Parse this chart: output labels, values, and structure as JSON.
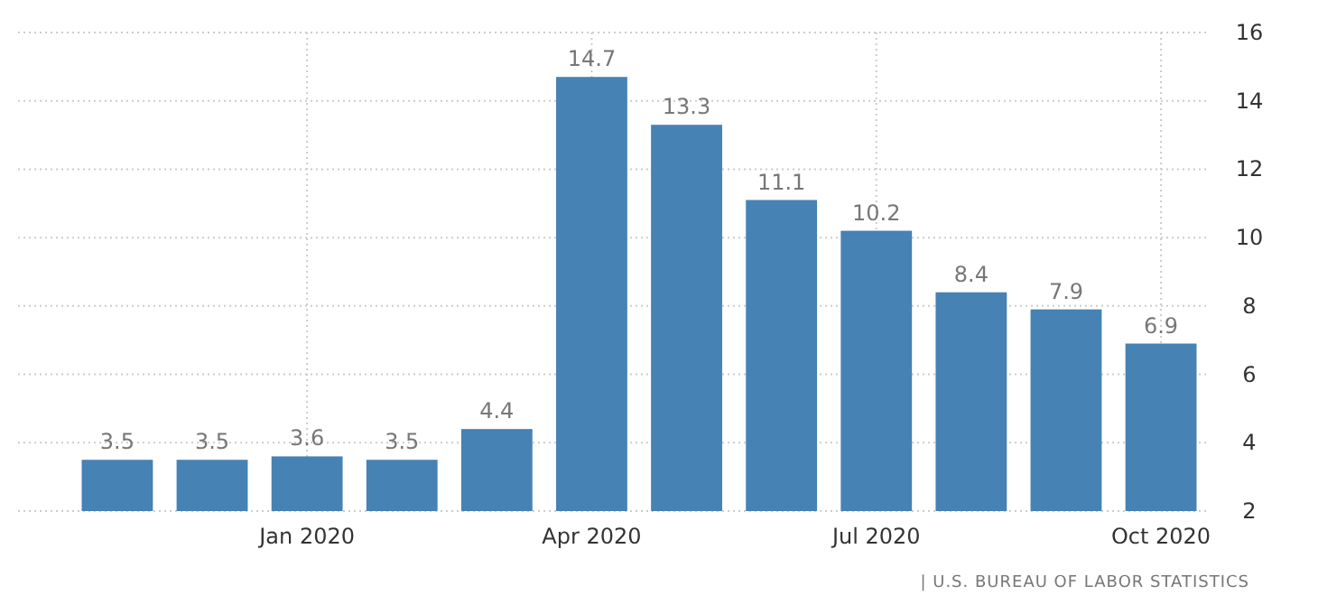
{
  "chart_data": {
    "type": "bar",
    "categories": [
      null,
      null,
      "Jan 2020",
      null,
      null,
      "Apr 2020",
      null,
      null,
      "Jul 2020",
      null,
      null,
      "Oct 2020"
    ],
    "values": [
      3.5,
      3.5,
      3.6,
      3.5,
      4.4,
      14.7,
      13.3,
      11.1,
      10.2,
      8.4,
      7.9,
      6.9
    ],
    "color": "#4682b4",
    "ylim": [
      2,
      16
    ],
    "yticks": [
      2,
      4,
      6,
      8,
      10,
      12,
      14,
      16
    ],
    "grid": true,
    "data_labels": true,
    "annotations": [
      "| U.S. BUREAU OF LABOR STATISTICS"
    ]
  }
}
